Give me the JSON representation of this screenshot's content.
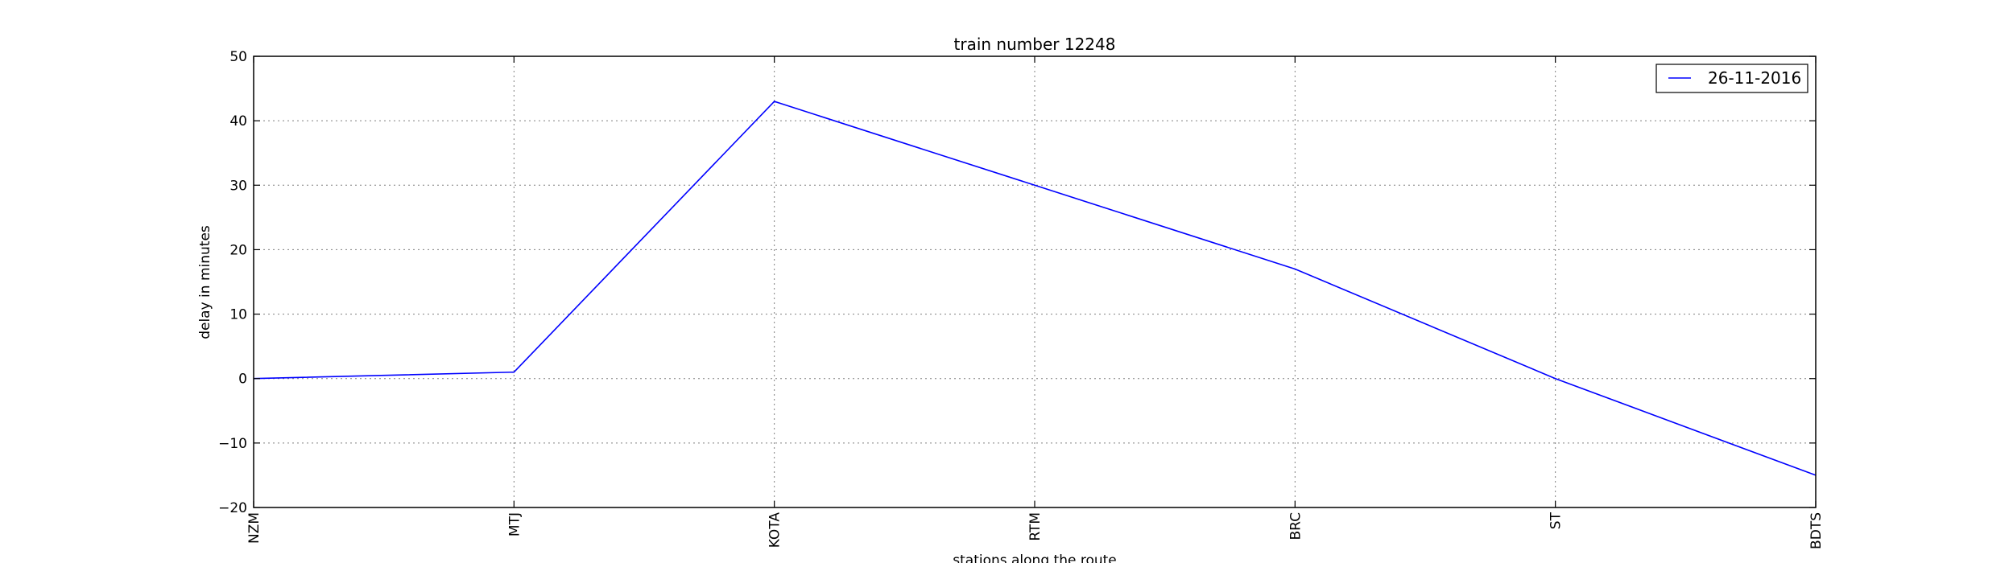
{
  "chart_data": {
    "type": "line",
    "title": "train number 12248",
    "xlabel": "stations along the route",
    "ylabel": "delay in minutes",
    "categories": [
      "NZM",
      "MTJ",
      "KOTA",
      "RTM",
      "BRC",
      "ST",
      "BDTS"
    ],
    "series": [
      {
        "name": "26-11-2016",
        "values": [
          0,
          1,
          43,
          30,
          17,
          0,
          -15
        ]
      }
    ],
    "ylim": [
      -20,
      50
    ],
    "yticks": [
      -20,
      -10,
      0,
      10,
      20,
      30,
      40,
      50
    ],
    "ytick_labels": [
      "−20",
      "−10",
      "0",
      "10",
      "20",
      "30",
      "40",
      "50"
    ],
    "grid": true,
    "legend_position": "top-right",
    "colors": {
      "series": "#0000ff",
      "grid": "#7f7f7f",
      "axes": "#000000"
    }
  }
}
